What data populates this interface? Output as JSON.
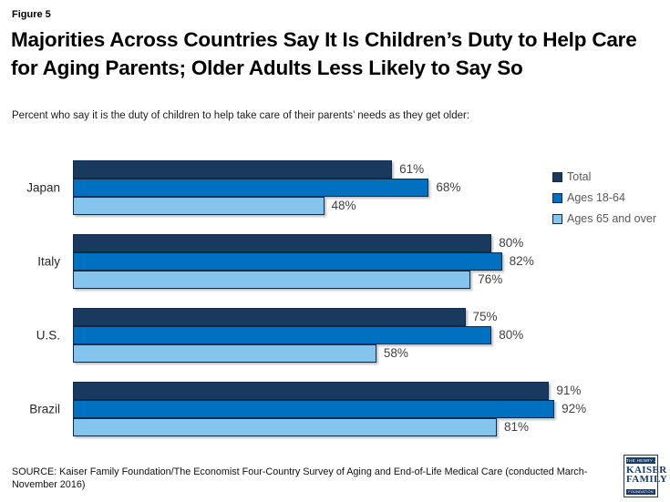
{
  "figure_label": "Figure 5",
  "title": "Majorities Across Countries Say It Is Children’s Duty to Help Care for Aging Parents; Older Adults Less Likely to Say So",
  "subtitle": "Percent who say it is the duty of children to help take care of their parents’ needs as they get older:",
  "source": "SOURCE: Kaiser Family Foundation/The Economist Four-Country Survey of Aging and End-of-Life Medical Care (conducted March-November 2016)",
  "logo": {
    "line1": "THE HENRY J.",
    "line2": "KAISER",
    "line3": "FAMILY",
    "line4": "FOUNDATION",
    "navy": "#1b3a66"
  },
  "colors": {
    "series_total": "#19395e",
    "series_18_64": "#0070c0",
    "series_65_over": "#85c4ec",
    "bar_border": "#0d2b4d",
    "value_text": "#404040",
    "legend_text": "#595959"
  },
  "chart_data": {
    "type": "bar",
    "orientation": "horizontal",
    "title": "Percent who say it is the duty of children to help take care of their parents’ needs as they get older:",
    "categories": [
      "Japan",
      "Italy",
      "U.S.",
      "Brazil"
    ],
    "series": [
      {
        "name": "Total",
        "color": "#19395e",
        "values": [
          61,
          80,
          75,
          91
        ]
      },
      {
        "name": "Ages 18-64",
        "color": "#0070c0",
        "values": [
          68,
          82,
          80,
          92
        ]
      },
      {
        "name": "Ages 65 and over",
        "color": "#85c4ec",
        "values": [
          48,
          76,
          58,
          81
        ]
      }
    ],
    "value_suffix": "%",
    "xlim": [
      0,
      100
    ],
    "grid": false,
    "legend_position": "right",
    "value_labels": true
  }
}
